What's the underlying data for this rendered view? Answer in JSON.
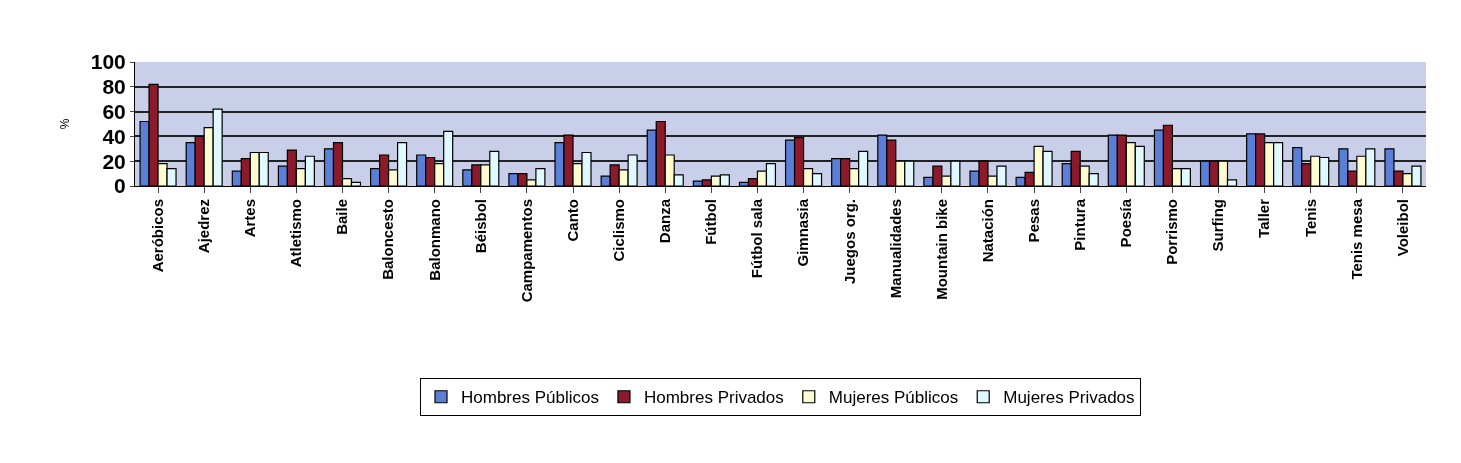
{
  "chart_data": {
    "type": "bar",
    "ylabel": "%",
    "categories": [
      "Aeróbicos",
      "Ajedrez",
      "Artes",
      "Atletismo",
      "Baile",
      "Baloncesto",
      "Balonmano",
      "Béisbol",
      "Campamentos",
      "Canto",
      "Ciclismo",
      "Danza",
      "Fútbol",
      "Fútbol sala",
      "Gimnasia",
      "Juegos org.",
      "Manualidades",
      "Mountain bike",
      "Natación",
      "Pesas",
      "Pintura",
      "Poesía",
      "Porrismo",
      "Surfing",
      "Taller",
      "Tenis",
      "Tenis mesa",
      "Voleibol"
    ],
    "series": [
      {
        "name": "Hombres Públicos",
        "color": "#5b7fd6",
        "values": [
          52,
          35,
          12,
          16,
          30,
          14,
          25,
          13,
          10,
          35,
          8,
          45,
          4,
          3,
          37,
          22,
          41,
          7,
          12,
          7,
          18,
          41,
          45,
          20,
          42,
          31,
          30,
          30
        ]
      },
      {
        "name": "Hombres Privados",
        "color": "#8b1a2a",
        "values": [
          82,
          40,
          22,
          29,
          35,
          25,
          23,
          17,
          10,
          41,
          17,
          52,
          5,
          6,
          39,
          22,
          37,
          16,
          20,
          11,
          28,
          41,
          49,
          20,
          42,
          18,
          12,
          12
        ]
      },
      {
        "name": "Mujeres Públicos",
        "color": "#fffbd0",
        "values": [
          18,
          47,
          27,
          14,
          6,
          13,
          18,
          17,
          5,
          18,
          13,
          25,
          8,
          12,
          14,
          14,
          20,
          8,
          8,
          32,
          16,
          35,
          14,
          20,
          35,
          24,
          24,
          10
        ]
      },
      {
        "name": "Mujeres Privados",
        "color": "#e0f8ff",
        "values": [
          14,
          62,
          27,
          24,
          3,
          35,
          44,
          28,
          14,
          27,
          25,
          9,
          9,
          18,
          10,
          28,
          20,
          20,
          16,
          28,
          10,
          32,
          14,
          5,
          35,
          23,
          30,
          16
        ]
      }
    ],
    "ylim": [
      0,
      100
    ],
    "yticks": [
      0,
      20,
      40,
      60,
      80,
      100
    ],
    "grid": "y",
    "legend": "bottom"
  }
}
